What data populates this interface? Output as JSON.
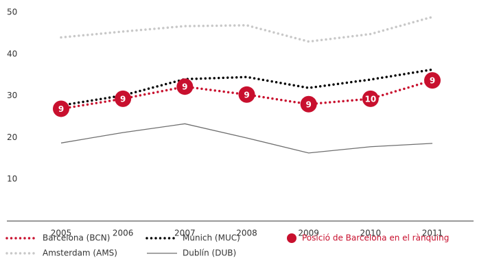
{
  "chart_data": {
    "type": "line",
    "categories": [
      "2005",
      "2006",
      "2007",
      "2008",
      "2009",
      "2010",
      "2011"
    ],
    "series": [
      {
        "name": "Barcelona (BCN)",
        "color": "#c8102e",
        "style": "dotted",
        "values": [
          26.9,
          29.3,
          32.2,
          30.3,
          28.0,
          29.3,
          33.7
        ]
      },
      {
        "name": "Munich (MUC)",
        "color": "#000000",
        "style": "dotted",
        "values": [
          27.7,
          30.1,
          34.0,
          34.5,
          31.9,
          33.9,
          36.3
        ]
      },
      {
        "name": "Amsterdam (AMS)",
        "color": "#c8c8c8",
        "style": "dotted",
        "values": [
          44.0,
          45.4,
          46.7,
          46.9,
          43.0,
          44.8,
          48.9
        ]
      },
      {
        "name": "Dublín (DUB)",
        "color": "#6e6e6e",
        "style": "solid",
        "values": [
          18.7,
          21.2,
          23.3,
          19.9,
          16.3,
          17.8,
          18.6
        ]
      }
    ],
    "ranking": {
      "name": "Posició de Barcelona en el rànquing",
      "color": "#c8102e",
      "values": [
        9,
        9,
        9,
        9,
        9,
        10,
        9
      ]
    },
    "ylim": [
      0,
      50
    ],
    "yticks": [
      10,
      20,
      30,
      40,
      50
    ],
    "grid": false
  }
}
